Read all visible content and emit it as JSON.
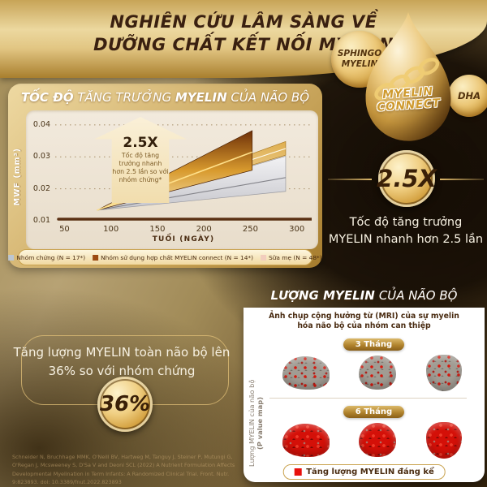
{
  "header": {
    "title_line1": "NGHIÊN CỨU LÂM SÀNG VỀ",
    "title_line2": "DƯỠNG CHẤT KẾT NỐI MYELIN"
  },
  "droplet": {
    "bubble_sphingo": "SPHINGO MYELIN",
    "bubble_dha": "DHA",
    "label_line1": "MYELIN",
    "label_line2": "CONNECT"
  },
  "growth_chart": {
    "title_bold1": "TỐC ĐỘ",
    "title_mid": " TĂNG TRƯỞNG ",
    "title_bold2": "MYELIN",
    "title_end": " CỦA NÃO BỘ",
    "ylabel": "MWF (mm³)",
    "xlabel": "TUỔI (NGÀY)",
    "annotation_big": "2.5X",
    "annotation_text": "Tốc độ tăng trưởng nhanh hơn 2.5 lần so với nhóm chứng*",
    "legend": [
      {
        "label": "Nhóm chứng (N = 17*)",
        "color": "#bcc6d1"
      },
      {
        "label": "Nhóm sử dụng hợp chất MYELIN connect (N = 14*)",
        "color": "#9c4a12"
      },
      {
        "label": "Sữa mẹ (N = 48*)",
        "color": "#f2cdbd"
      }
    ]
  },
  "chart_data": {
    "type": "area",
    "title": "TỐC ĐỘ TĂNG TRƯỞNG MYELIN CỦA NÃO BỘ",
    "xlabel": "TUỔI (NGÀY)",
    "ylabel": "MWF (mm³)",
    "xlim": [
      40,
      316
    ],
    "ylim": [
      0.01,
      0.0425
    ],
    "x_ticks": [
      50,
      100,
      150,
      200,
      250,
      300
    ],
    "y_ticks": [
      0.01,
      0.02,
      0.03,
      0.04
    ],
    "grid": "dotted horizontal",
    "legend_position": "bottom",
    "series": [
      {
        "name": "Nhóm chứng",
        "n": 17,
        "origin": {
          "x": 85,
          "y": 0.0133
        },
        "end": {
          "x": 288,
          "y_top": 0.0302,
          "y_center": 0.0235,
          "y_bottom": 0.0192
        },
        "fill": [
          "#f2f2f4",
          "#c6c6cc"
        ],
        "edge": "#9a9aa0",
        "line": "#84848a"
      },
      {
        "name": "Sữa mẹ",
        "n": 48,
        "origin": {
          "x": 85,
          "y": 0.0133
        },
        "end": {
          "x": 288,
          "y_top": 0.0348,
          "y_center": 0.0326,
          "y_bottom": 0.0305
        },
        "fill": [
          "#dfae4e",
          "#f7ecd2"
        ],
        "edge": "#a87820",
        "line": "#fffdf2"
      },
      {
        "name": "Nhóm sử dụng hợp chất MYELIN connect",
        "n": 14,
        "origin": {
          "x": 85,
          "y": 0.0133
        },
        "end": {
          "x": 252,
          "y_top": 0.0382,
          "y_center": 0.0315,
          "y_bottom": 0.0258
        },
        "fill": [
          "#6e3008",
          "#d89a2e",
          "#f6e3ae"
        ],
        "edge": "#4a2004",
        "line": "#ffe08a"
      }
    ]
  },
  "fact_speed": {
    "big": "2.5X",
    "line1": "Tốc độ tăng trưởng",
    "line2": "MYELIN nhanh hơn 2.5 lần"
  },
  "fact_amount": {
    "line1": "Tăng lượng MYELIN toàn não bộ lên",
    "line2": "36% so với nhóm chứng",
    "big": "36%"
  },
  "mri_panel": {
    "title_bold": "LƯỢNG MYELIN",
    "title_rest": "CỦA NÃO BỘ",
    "subtitle_line1": "Ảnh chụp cộng hưởng từ (MRI) của sự myelin",
    "subtitle_line2": "hóa não bộ của nhóm can thiệp",
    "side_label_line1": "Lượng MYELIN của não bộ",
    "side_label_line2": "(P value map)",
    "badge_3m": "3 Tháng",
    "badge_6m": "6 Tháng",
    "legend_label": "Tăng lượng MYELIN đáng kể",
    "legend_color": "#e8100c"
  },
  "footnote": "Schneider N, Bruchhage MMK, O'Neill BV, Hartweg M, Tanguy J, Steiner P, Mutungi G, O'Regan J, Mcsweeney S, D'Sa V and Deoni SCL (2022) A Nutrient Formulation Affects Developmental Myelination in Term Infants: A Randomized Clinical Trial. Front. Nutr. 9:823893. doi: 10.3389/fnut.2022.823893"
}
